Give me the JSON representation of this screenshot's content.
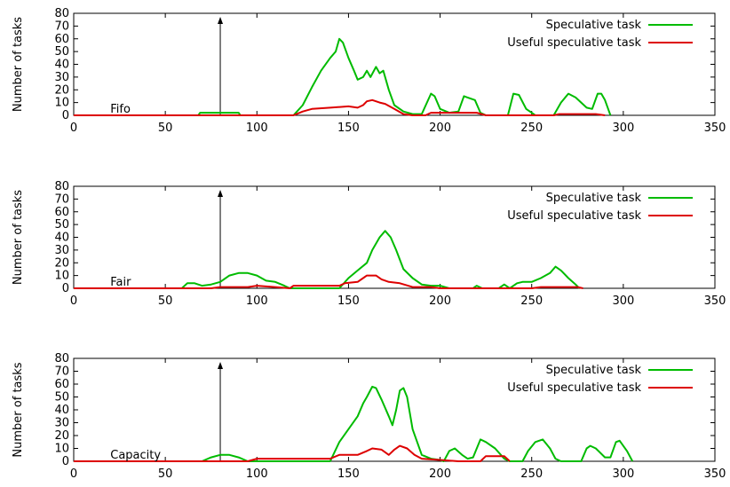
{
  "chart_data": [
    {
      "type": "line",
      "annotation": "Fifo",
      "ylabel": "Number of tasks",
      "xlim": [
        0,
        350
      ],
      "ylim": [
        0,
        80
      ],
      "xticks": [
        0,
        50,
        100,
        150,
        200,
        250,
        300,
        350
      ],
      "yticks": [
        0,
        10,
        20,
        30,
        40,
        50,
        60,
        70,
        80
      ],
      "arrow_x": 80,
      "legend_position": "top-right",
      "series": [
        {
          "name": "Speculative task",
          "color": "#00bb00",
          "points": [
            [
              0,
              0
            ],
            [
              68,
              0
            ],
            [
              69,
              2
            ],
            [
              90,
              2
            ],
            [
              91,
              0
            ],
            [
              120,
              0
            ],
            [
              125,
              8
            ],
            [
              130,
              22
            ],
            [
              135,
              35
            ],
            [
              140,
              45
            ],
            [
              143,
              50
            ],
            [
              145,
              60
            ],
            [
              147,
              57
            ],
            [
              150,
              45
            ],
            [
              153,
              35
            ],
            [
              155,
              28
            ],
            [
              158,
              30
            ],
            [
              160,
              35
            ],
            [
              162,
              30
            ],
            [
              165,
              38
            ],
            [
              167,
              33
            ],
            [
              169,
              35
            ],
            [
              172,
              20
            ],
            [
              175,
              8
            ],
            [
              180,
              3
            ],
            [
              185,
              1
            ],
            [
              190,
              1
            ],
            [
              195,
              17
            ],
            [
              197,
              15
            ],
            [
              200,
              5
            ],
            [
              205,
              2
            ],
            [
              210,
              3
            ],
            [
              213,
              15
            ],
            [
              215,
              14
            ],
            [
              219,
              12
            ],
            [
              222,
              2
            ],
            [
              225,
              0
            ],
            [
              237,
              0
            ],
            [
              240,
              17
            ],
            [
              243,
              16
            ],
            [
              247,
              5
            ],
            [
              250,
              2
            ],
            [
              252,
              0
            ],
            [
              262,
              0
            ],
            [
              266,
              10
            ],
            [
              270,
              17
            ],
            [
              274,
              14
            ],
            [
              280,
              6
            ],
            [
              283,
              5
            ],
            [
              286,
              17
            ],
            [
              288,
              17
            ],
            [
              290,
              12
            ],
            [
              293,
              0
            ]
          ]
        },
        {
          "name": "Useful speculative task",
          "color": "#dd0000",
          "points": [
            [
              0,
              0
            ],
            [
              120,
              0
            ],
            [
              125,
              3
            ],
            [
              130,
              5
            ],
            [
              140,
              6
            ],
            [
              150,
              7
            ],
            [
              155,
              6
            ],
            [
              158,
              8
            ],
            [
              160,
              11
            ],
            [
              163,
              12
            ],
            [
              167,
              10
            ],
            [
              170,
              9
            ],
            [
              175,
              5
            ],
            [
              180,
              1
            ],
            [
              185,
              0
            ],
            [
              192,
              0
            ],
            [
              195,
              2
            ],
            [
              220,
              2
            ],
            [
              225,
              0
            ],
            [
              262,
              0
            ],
            [
              265,
              1
            ],
            [
              285,
              1
            ],
            [
              290,
              0
            ]
          ]
        }
      ]
    },
    {
      "type": "line",
      "annotation": "Fair",
      "ylabel": "Number of tasks",
      "xlim": [
        0,
        350
      ],
      "ylim": [
        0,
        80
      ],
      "xticks": [
        0,
        50,
        100,
        150,
        200,
        250,
        300,
        350
      ],
      "yticks": [
        0,
        10,
        20,
        30,
        40,
        50,
        60,
        70,
        80
      ],
      "arrow_x": 80,
      "legend_position": "top-right",
      "series": [
        {
          "name": "Speculative task",
          "color": "#00bb00",
          "points": [
            [
              0,
              0
            ],
            [
              59,
              0
            ],
            [
              62,
              4
            ],
            [
              66,
              4
            ],
            [
              70,
              2
            ],
            [
              75,
              3
            ],
            [
              80,
              5
            ],
            [
              85,
              10
            ],
            [
              90,
              12
            ],
            [
              95,
              12
            ],
            [
              100,
              10
            ],
            [
              105,
              6
            ],
            [
              110,
              5
            ],
            [
              115,
              2
            ],
            [
              118,
              0
            ],
            [
              145,
              0
            ],
            [
              150,
              8
            ],
            [
              155,
              14
            ],
            [
              160,
              20
            ],
            [
              163,
              30
            ],
            [
              167,
              40
            ],
            [
              170,
              45
            ],
            [
              173,
              40
            ],
            [
              176,
              30
            ],
            [
              180,
              15
            ],
            [
              185,
              8
            ],
            [
              190,
              3
            ],
            [
              195,
              2
            ],
            [
              200,
              2
            ],
            [
              205,
              0
            ],
            [
              218,
              0
            ],
            [
              220,
              2
            ],
            [
              223,
              0
            ],
            [
              232,
              0
            ],
            [
              235,
              3
            ],
            [
              238,
              0
            ],
            [
              242,
              4
            ],
            [
              245,
              5
            ],
            [
              250,
              5
            ],
            [
              255,
              8
            ],
            [
              260,
              12
            ],
            [
              263,
              17
            ],
            [
              266,
              14
            ],
            [
              270,
              8
            ],
            [
              274,
              3
            ],
            [
              276,
              0
            ]
          ]
        },
        {
          "name": "Useful speculative task",
          "color": "#dd0000",
          "points": [
            [
              0,
              0
            ],
            [
              75,
              0
            ],
            [
              80,
              1
            ],
            [
              95,
              1
            ],
            [
              100,
              2
            ],
            [
              110,
              1
            ],
            [
              118,
              0
            ],
            [
              120,
              2
            ],
            [
              145,
              2
            ],
            [
              148,
              4
            ],
            [
              155,
              5
            ],
            [
              158,
              8
            ],
            [
              160,
              10
            ],
            [
              165,
              10
            ],
            [
              168,
              7
            ],
            [
              172,
              5
            ],
            [
              178,
              4
            ],
            [
              185,
              1
            ],
            [
              195,
              1
            ],
            [
              200,
              0
            ],
            [
              250,
              0
            ],
            [
              255,
              1
            ],
            [
              275,
              1
            ],
            [
              278,
              0
            ]
          ]
        }
      ]
    },
    {
      "type": "line",
      "annotation": "Capacity",
      "ylabel": "Number of tasks",
      "xlim": [
        0,
        350
      ],
      "ylim": [
        0,
        80
      ],
      "xticks": [
        0,
        50,
        100,
        150,
        200,
        250,
        300,
        350
      ],
      "yticks": [
        0,
        10,
        20,
        30,
        40,
        50,
        60,
        70,
        80
      ],
      "arrow_x": 80,
      "legend_position": "top-right",
      "series": [
        {
          "name": "Speculative task",
          "color": "#00bb00",
          "points": [
            [
              0,
              0
            ],
            [
              70,
              0
            ],
            [
              75,
              3
            ],
            [
              80,
              5
            ],
            [
              85,
              5
            ],
            [
              90,
              3
            ],
            [
              95,
              0
            ],
            [
              140,
              0
            ],
            [
              145,
              15
            ],
            [
              150,
              25
            ],
            [
              155,
              35
            ],
            [
              158,
              45
            ],
            [
              160,
              50
            ],
            [
              163,
              58
            ],
            [
              165,
              57
            ],
            [
              168,
              48
            ],
            [
              172,
              35
            ],
            [
              174,
              28
            ],
            [
              176,
              40
            ],
            [
              178,
              55
            ],
            [
              180,
              57
            ],
            [
              182,
              50
            ],
            [
              185,
              25
            ],
            [
              190,
              5
            ],
            [
              195,
              2
            ],
            [
              200,
              1
            ],
            [
              202,
              0
            ],
            [
              205,
              8
            ],
            [
              208,
              10
            ],
            [
              212,
              5
            ],
            [
              215,
              2
            ],
            [
              218,
              3
            ],
            [
              222,
              17
            ],
            [
              225,
              15
            ],
            [
              230,
              10
            ],
            [
              235,
              2
            ],
            [
              238,
              0
            ],
            [
              245,
              0
            ],
            [
              248,
              8
            ],
            [
              252,
              15
            ],
            [
              256,
              17
            ],
            [
              260,
              10
            ],
            [
              263,
              2
            ],
            [
              266,
              0
            ],
            [
              277,
              0
            ],
            [
              280,
              10
            ],
            [
              282,
              12
            ],
            [
              285,
              10
            ],
            [
              290,
              3
            ],
            [
              293,
              3
            ],
            [
              296,
              15
            ],
            [
              298,
              16
            ],
            [
              302,
              8
            ],
            [
              305,
              0
            ]
          ]
        },
        {
          "name": "Useful speculative task",
          "color": "#dd0000",
          "points": [
            [
              0,
              0
            ],
            [
              95,
              0
            ],
            [
              100,
              2
            ],
            [
              140,
              2
            ],
            [
              145,
              5
            ],
            [
              155,
              5
            ],
            [
              160,
              8
            ],
            [
              163,
              10
            ],
            [
              168,
              9
            ],
            [
              172,
              5
            ],
            [
              175,
              9
            ],
            [
              178,
              12
            ],
            [
              182,
              10
            ],
            [
              186,
              5
            ],
            [
              190,
              2
            ],
            [
              200,
              1
            ],
            [
              210,
              0
            ],
            [
              222,
              0
            ],
            [
              225,
              4
            ],
            [
              235,
              4
            ],
            [
              238,
              0
            ]
          ]
        }
      ]
    }
  ]
}
